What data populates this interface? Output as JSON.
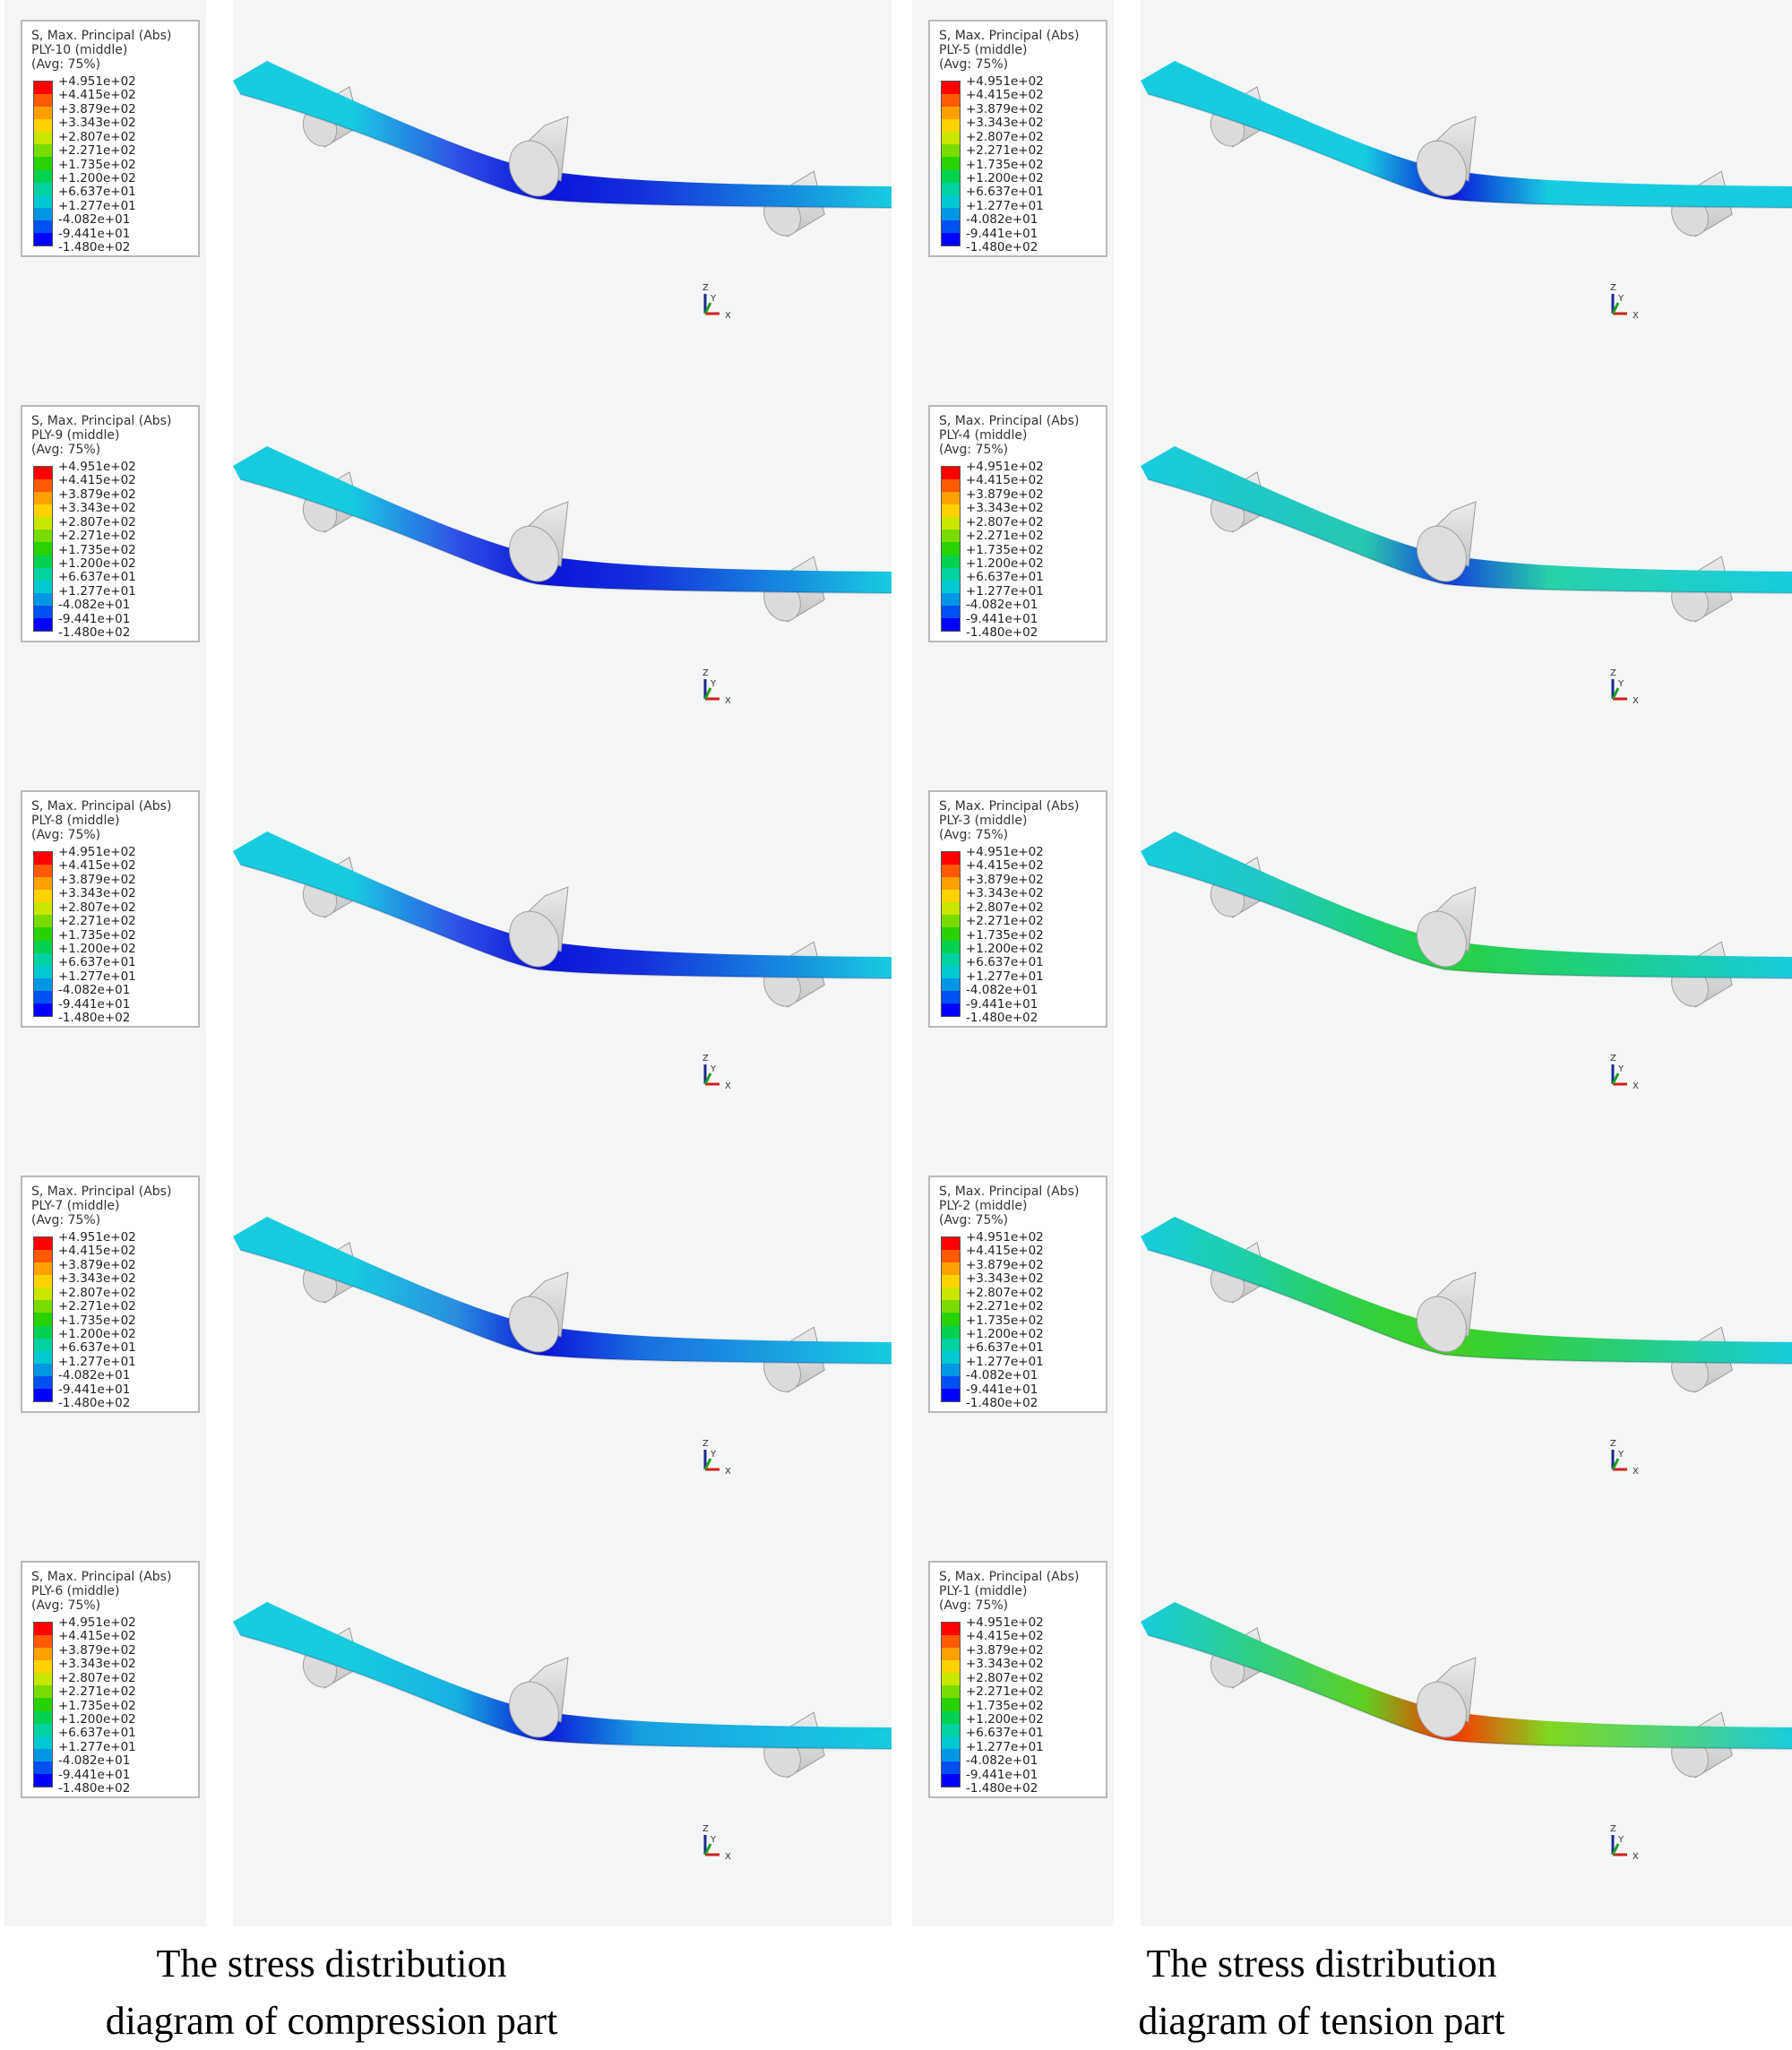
{
  "legend_scale": {
    "title_line1": "S, Max. Principal (Abs)",
    "avg": "(Avg: 75%)",
    "values": [
      "+4.951e+02",
      "+4.415e+02",
      "+3.879e+02",
      "+3.343e+02",
      "+2.807e+02",
      "+2.271e+02",
      "+1.735e+02",
      "+1.200e+02",
      "+6.637e+01",
      "+1.277e+01",
      "-4.082e+01",
      "-9.441e+01",
      "-1.480e+02"
    ],
    "colors": [
      "#ff0000",
      "#ff5a00",
      "#ffa000",
      "#ffd200",
      "#c8e600",
      "#78dc00",
      "#28d200",
      "#00d250",
      "#00d2a0",
      "#00c8d2",
      "#0096e6",
      "#0050f0",
      "#0000ff"
    ]
  },
  "axis_triad": {
    "z": "Z",
    "y": "Y",
    "x": "X"
  },
  "columns": [
    {
      "caption_line1": "The stress distribution",
      "caption_line2": "diagram of compression part",
      "panels": [
        {
          "ply": "PLY-10 (middle)",
          "beam_colors": [
            "#18cce0",
            "#18cce0",
            "#2f52e6",
            "#0a14d8",
            "#1430dc",
            "#18cce0"
          ]
        },
        {
          "ply": "PLY-9 (middle)",
          "beam_colors": [
            "#18cce0",
            "#18cce0",
            "#2f52e6",
            "#0a14d8",
            "#1430dc",
            "#18cce0"
          ]
        },
        {
          "ply": "PLY-8 (middle)",
          "beam_colors": [
            "#18cce0",
            "#18cce0",
            "#2f52e6",
            "#0a14d8",
            "#1430dc",
            "#18cce0"
          ]
        },
        {
          "ply": "PLY-7 (middle)",
          "beam_colors": [
            "#18cce0",
            "#18cce0",
            "#2a8ee0",
            "#0a14d8",
            "#1a6ee0",
            "#18cce0"
          ]
        },
        {
          "ply": "PLY-6 (middle)",
          "beam_colors": [
            "#18cce0",
            "#18cce0",
            "#18b0e0",
            "#0a14d8",
            "#18a0e0",
            "#18cce0"
          ]
        }
      ]
    },
    {
      "caption_line1": "The stress distribution",
      "caption_line2": "diagram of tension part",
      "panels": [
        {
          "ply": "PLY-5 (middle)",
          "beam_colors": [
            "#18cce0",
            "#18cce0",
            "#18cce0",
            "#0a14d8",
            "#18cce0",
            "#18cce0"
          ]
        },
        {
          "ply": "PLY-4 (middle)",
          "beam_colors": [
            "#18cce0",
            "#20c8c8",
            "#28c8b0",
            "#1440dc",
            "#28d2a8",
            "#18cce0"
          ]
        },
        {
          "ply": "PLY-3 (middle)",
          "beam_colors": [
            "#18cce0",
            "#20c8c8",
            "#20d080",
            "#28d040",
            "#20d070",
            "#18cce0"
          ]
        },
        {
          "ply": "PLY-2 (middle)",
          "beam_colors": [
            "#18cce0",
            "#20d0a0",
            "#30d040",
            "#40d020",
            "#30d050",
            "#18cce0"
          ]
        },
        {
          "ply": "PLY-1 (middle)",
          "beam_colors": [
            "#18cce0",
            "#30d080",
            "#60d020",
            "#ff3000",
            "#80d820",
            "#18cce0"
          ]
        }
      ]
    }
  ]
}
